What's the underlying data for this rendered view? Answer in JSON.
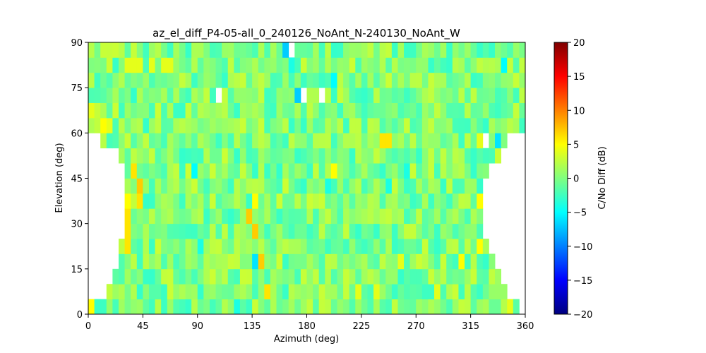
{
  "chart_data": {
    "type": "heatmap",
    "title": "az_el_diff_P4-05-all_0_240126_NoAnt_N-240130_NoAnt_W",
    "xlabel": "Azimuth (deg)",
    "ylabel": "Elevation (deg)",
    "xlim": [
      0,
      360
    ],
    "ylim": [
      0,
      90
    ],
    "x_ticks": [
      "0",
      "45",
      "90",
      "135",
      "180",
      "225",
      "270",
      "315",
      "360"
    ],
    "y_ticks": [
      "0",
      "15",
      "30",
      "45",
      "60",
      "75",
      "90"
    ],
    "grid": false,
    "colorbar": {
      "label": "C/No Diff (dB)",
      "colormap": "jet",
      "range": [
        -20,
        20
      ],
      "ticks": [
        "−20",
        "−15",
        "−10",
        "−5",
        "0",
        "5",
        "10",
        "15",
        "20"
      ]
    },
    "cell_size_deg": {
      "azimuth": 5,
      "elevation": 5
    },
    "coverage_by_elevation_band": [
      {
        "el_start": 0,
        "az_min": 0,
        "az_max": 355
      },
      {
        "el_start": 5,
        "az_min": 15,
        "az_max": 345
      },
      {
        "el_start": 10,
        "az_min": 20,
        "az_max": 340
      },
      {
        "el_start": 15,
        "az_min": 25,
        "az_max": 335
      },
      {
        "el_start": 20,
        "az_min": 25,
        "az_max": 330
      },
      {
        "el_start": 25,
        "az_min": 30,
        "az_max": 325
      },
      {
        "el_start": 30,
        "az_min": 30,
        "az_max": 325
      },
      {
        "el_start": 35,
        "az_min": 30,
        "az_max": 325
      },
      {
        "el_start": 40,
        "az_min": 30,
        "az_max": 325
      },
      {
        "el_start": 45,
        "az_min": 30,
        "az_max": 330
      },
      {
        "el_start": 50,
        "az_min": 25,
        "az_max": 340
      },
      {
        "el_start": 55,
        "az_min": 10,
        "az_max": 345
      },
      {
        "el_start": 60,
        "az_min": 0,
        "az_max": 360
      },
      {
        "el_start": 65,
        "az_min": 0,
        "az_max": 360
      },
      {
        "el_start": 70,
        "az_min": 0,
        "az_max": 360
      },
      {
        "el_start": 75,
        "az_min": 0,
        "az_max": 360
      },
      {
        "el_start": 80,
        "az_min": 0,
        "az_max": 360
      },
      {
        "el_start": 85,
        "az_min": 0,
        "az_max": 360
      }
    ],
    "background_range_db": [
      -3,
      3
    ],
    "notable_cells": [
      {
        "az": 160,
        "el": 85,
        "value": -7
      },
      {
        "az": 165,
        "el": 85,
        "value": null
      },
      {
        "az": 165,
        "el": 80,
        "value": -4
      },
      {
        "az": 200,
        "el": 75,
        "value": -5
      },
      {
        "az": 170,
        "el": 70,
        "value": -7
      },
      {
        "az": 105,
        "el": 70,
        "value": null
      },
      {
        "az": 175,
        "el": 70,
        "value": null
      },
      {
        "az": 190,
        "el": 70,
        "value": null
      },
      {
        "az": 30,
        "el": 80,
        "value": 4
      },
      {
        "az": 35,
        "el": 80,
        "value": 4
      },
      {
        "az": 40,
        "el": 80,
        "value": 4
      },
      {
        "az": 50,
        "el": 80,
        "value": 4
      },
      {
        "az": 60,
        "el": 80,
        "value": 4
      },
      {
        "az": 65,
        "el": 80,
        "value": 4
      },
      {
        "az": 340,
        "el": 80,
        "value": -5
      },
      {
        "az": 0,
        "el": 65,
        "value": 4
      },
      {
        "az": 10,
        "el": 60,
        "value": 5
      },
      {
        "az": 15,
        "el": 60,
        "value": 4
      },
      {
        "az": 240,
        "el": 55,
        "value": 6
      },
      {
        "az": 245,
        "el": 55,
        "value": 6
      },
      {
        "az": 325,
        "el": 55,
        "value": null
      },
      {
        "az": 335,
        "el": 55,
        "value": -6
      },
      {
        "az": 320,
        "el": 55,
        "value": 4
      },
      {
        "az": 35,
        "el": 45,
        "value": 6
      },
      {
        "az": 85,
        "el": 45,
        "value": -5
      },
      {
        "az": 200,
        "el": 45,
        "value": 5
      },
      {
        "az": 260,
        "el": 45,
        "value": -4
      },
      {
        "az": 330,
        "el": 45,
        "value": -5
      },
      {
        "az": 40,
        "el": 40,
        "value": 7
      },
      {
        "az": 40,
        "el": 35,
        "value": 6
      },
      {
        "az": 195,
        "el": 40,
        "value": -4
      },
      {
        "az": 245,
        "el": 40,
        "value": -4
      },
      {
        "az": 330,
        "el": 40,
        "value": -7
      },
      {
        "az": 30,
        "el": 35,
        "value": 5
      },
      {
        "az": 30,
        "el": 30,
        "value": 6
      },
      {
        "az": 30,
        "el": 25,
        "value": 6
      },
      {
        "az": 30,
        "el": 20,
        "value": 6
      },
      {
        "az": 135,
        "el": 35,
        "value": 5
      },
      {
        "az": 130,
        "el": 30,
        "value": 7
      },
      {
        "az": 135,
        "el": 25,
        "value": 7
      },
      {
        "az": 320,
        "el": 35,
        "value": 5
      },
      {
        "az": 320,
        "el": 20,
        "value": 5
      },
      {
        "az": 90,
        "el": 20,
        "value": -4
      },
      {
        "az": 135,
        "el": 15,
        "value": -6
      },
      {
        "az": 140,
        "el": 15,
        "value": 7
      },
      {
        "az": 255,
        "el": 15,
        "value": 4
      },
      {
        "az": 305,
        "el": 15,
        "value": 5
      },
      {
        "az": 145,
        "el": 5,
        "value": 6
      },
      {
        "az": 220,
        "el": 5,
        "value": 4
      },
      {
        "az": 235,
        "el": 5,
        "value": 4
      },
      {
        "az": 285,
        "el": 5,
        "value": 4
      },
      {
        "az": 0,
        "el": 0,
        "value": 5
      },
      {
        "az": 120,
        "el": 0,
        "value": -4
      },
      {
        "az": 345,
        "el": 0,
        "value": 4
      }
    ]
  }
}
